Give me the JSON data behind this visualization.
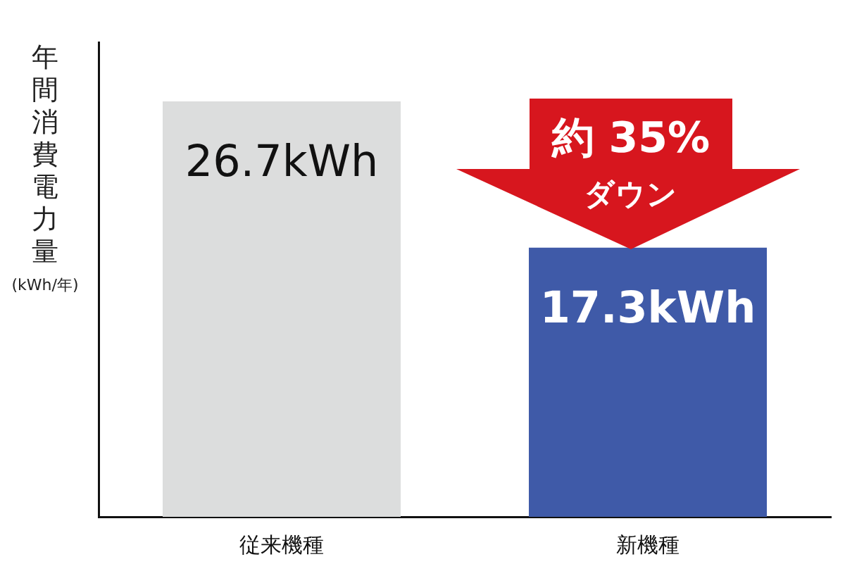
{
  "chart_data": {
    "type": "bar",
    "ylabel": "年間消費電力量\n(kWh/年)",
    "categories": [
      "従来機種",
      "新機種"
    ],
    "values": [
      26.7,
      17.3
    ],
    "colors": [
      "#dcdddd",
      "#3f5aa8"
    ],
    "value_labels": [
      "26.7kWh",
      "17.3kWh"
    ],
    "ylim": [
      0,
      30.5
    ],
    "tick_labels": "x",
    "grid": false,
    "legend": false,
    "annotations": [
      "約 35%",
      "ダウン"
    ]
  }
}
